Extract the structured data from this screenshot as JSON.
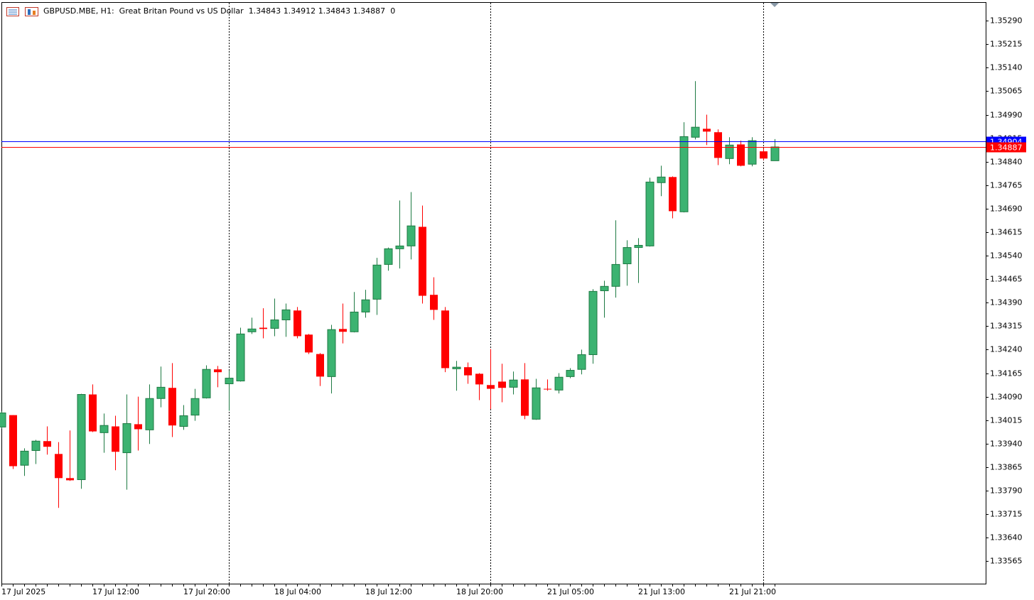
{
  "chart_data": {
    "type": "candlestick",
    "title": "GBPUSD.MBE, H1:",
    "subtitle": "Great Britan Pound vs US Dollar",
    "last_volume": 0,
    "categories": [
      "17 Jul 2025",
      null,
      null,
      null,
      null,
      null,
      null,
      null,
      "17 Jul 12:00",
      null,
      null,
      null,
      null,
      null,
      null,
      null,
      "17 Jul 20:00",
      null,
      null,
      null,
      null,
      null,
      null,
      null,
      "18 Jul 04:00",
      null,
      null,
      null,
      null,
      null,
      null,
      null,
      "18 Jul 12:00",
      null,
      null,
      null,
      null,
      null,
      null,
      null,
      "18 Jul 20:00",
      null,
      null,
      null,
      null,
      null,
      null,
      null,
      "21 Jul 05:00",
      null,
      null,
      null,
      null,
      null,
      null,
      null,
      "21 Jul 13:00",
      null,
      null,
      null,
      null,
      null,
      null,
      null,
      "21 Jul 21:00",
      null,
      null,
      null,
      null
    ],
    "open": [
      1.33993,
      1.34031,
      1.33871,
      1.33918,
      1.33948,
      1.33907,
      1.3383,
      1.33825,
      1.34097,
      1.33975,
      1.33995,
      1.33911,
      1.34002,
      1.33984,
      1.34084,
      1.34118,
      1.33995,
      1.34031,
      1.34086,
      1.34177,
      1.34131,
      1.3414,
      1.34297,
      1.3431,
      1.34308,
      1.34335,
      1.34365,
      1.34288,
      1.34226,
      1.34154,
      1.34306,
      1.34297,
      1.3436,
      1.34401,
      1.34512,
      1.34562,
      1.34571,
      1.34632,
      1.34415,
      1.34365,
      1.34179,
      1.34184,
      1.34163,
      1.34127,
      1.34138,
      1.3412,
      1.34145,
      1.34018,
      1.34115,
      1.34111,
      1.34154,
      1.34177,
      1.34224,
      1.34428,
      1.34442,
      1.34514,
      1.34566,
      1.34571,
      1.34773,
      1.34791,
      1.3468,
      1.34918,
      1.34945,
      1.34934,
      1.3485,
      1.34895,
      1.34832,
      1.34873,
      1.34843
    ],
    "high": [
      1.34043,
      1.34031,
      1.33925,
      1.33952,
      1.33995,
      1.33945,
      1.33982,
      1.34099,
      1.34129,
      1.34036,
      1.34029,
      1.34097,
      1.3409,
      1.34129,
      1.34186,
      1.34197,
      1.34063,
      1.34115,
      1.3419,
      1.34188,
      1.34174,
      1.3431,
      1.34342,
      1.34372,
      1.34403,
      1.34387,
      1.34376,
      1.3429,
      1.34229,
      1.34319,
      1.34387,
      1.34424,
      1.34431,
      1.34533,
      1.34566,
      1.34716,
      1.34743,
      1.347,
      1.34471,
      1.34376,
      1.34204,
      1.34199,
      1.34165,
      1.34242,
      1.34195,
      1.3417,
      1.34197,
      1.34147,
      1.34145,
      1.34165,
      1.34181,
      1.3424,
      1.34433,
      1.3446,
      1.34653,
      1.34589,
      1.34596,
      1.34789,
      1.34827,
      1.34793,
      1.34966,
      1.35097,
      1.3499,
      1.34943,
      1.34918,
      1.34907,
      1.34918,
      1.34882,
      1.34912
    ],
    "low": [
      1.33988,
      1.33859,
      1.33837,
      1.33875,
      1.33905,
      1.33735,
      1.33821,
      1.33796,
      1.33977,
      1.33911,
      1.33855,
      1.33793,
      1.33918,
      1.33939,
      1.34056,
      1.33961,
      1.33984,
      1.34013,
      1.34084,
      1.3412,
      1.34045,
      1.34138,
      1.3429,
      1.34276,
      1.34283,
      1.34281,
      1.34276,
      1.34226,
      1.34124,
      1.341,
      1.3426,
      1.34295,
      1.34342,
      1.34351,
      1.34492,
      1.34499,
      1.34528,
      1.34387,
      1.34335,
      1.34168,
      1.34109,
      1.34131,
      1.34079,
      1.3405,
      1.34072,
      1.34097,
      1.34018,
      1.34016,
      1.34109,
      1.341,
      1.34149,
      1.34161,
      1.34195,
      1.34342,
      1.34406,
      1.34444,
      1.34453,
      1.34569,
      1.3473,
      1.34659,
      1.34678,
      1.34911,
      1.34893,
      1.34829,
      1.34832,
      1.34825,
      1.34825,
      1.34845,
      1.34843
    ],
    "close": [
      1.34038,
      1.33868,
      1.33916,
      1.33948,
      1.3393,
      1.3383,
      1.33823,
      1.34097,
      1.33979,
      1.33998,
      1.33914,
      1.34004,
      1.33986,
      1.34084,
      1.3412,
      1.33998,
      1.34029,
      1.34084,
      1.34177,
      1.34168,
      1.34149,
      1.3429,
      1.34306,
      1.34306,
      1.34335,
      1.34367,
      1.34283,
      1.34231,
      1.34154,
      1.34304,
      1.34297,
      1.3436,
      1.34399,
      1.3451,
      1.34562,
      1.34571,
      1.34635,
      1.34412,
      1.34367,
      1.34181,
      1.34184,
      1.34158,
      1.34129,
      1.34115,
      1.34118,
      1.34143,
      1.34029,
      1.34118,
      1.34113,
      1.34152,
      1.34174,
      1.34224,
      1.34426,
      1.34442,
      1.34512,
      1.34566,
      1.34573,
      1.34775,
      1.34791,
      1.34682,
      1.3492,
      1.3495,
      1.34936,
      1.34852,
      1.34893,
      1.34827,
      1.34907,
      1.3485,
      1.34887
    ],
    "up_color": "#3cb371",
    "down_color": "#ff0000",
    "separators": [
      20,
      43,
      67
    ],
    "price_lines": [
      {
        "value": 1.34904,
        "label": "1.34904",
        "color": "#0000ff"
      },
      {
        "value": 1.34887,
        "label": "1.34887",
        "color": "#ff0000"
      }
    ],
    "ylim": [
      1.33493,
      1.35347
    ],
    "yticks": [
      {
        "value": 1.3529,
        "label": "1.35290"
      },
      {
        "value": 1.35215,
        "label": "1.35215"
      },
      {
        "value": 1.3514,
        "label": "1.35140"
      },
      {
        "value": 1.35065,
        "label": "1.35065"
      },
      {
        "value": 1.3499,
        "label": "1.34990"
      },
      {
        "value": 1.34915,
        "label": "1.34915"
      },
      {
        "value": 1.3484,
        "label": "1.34840"
      },
      {
        "value": 1.34765,
        "label": "1.34765"
      },
      {
        "value": 1.3469,
        "label": "1.34690"
      },
      {
        "value": 1.34615,
        "label": "1.34615"
      },
      {
        "value": 1.3454,
        "label": "1.34540"
      },
      {
        "value": 1.34465,
        "label": "1.34465"
      },
      {
        "value": 1.3439,
        "label": "1.34390"
      },
      {
        "value": 1.34315,
        "label": "1.34315"
      },
      {
        "value": 1.3424,
        "label": "1.34240"
      },
      {
        "value": 1.34165,
        "label": "1.34165"
      },
      {
        "value": 1.3409,
        "label": "1.34090"
      },
      {
        "value": 1.34015,
        "label": "1.34015"
      },
      {
        "value": 1.3394,
        "label": "1.33940"
      },
      {
        "value": 1.33865,
        "label": "1.33865"
      },
      {
        "value": 1.3379,
        "label": "1.33790"
      },
      {
        "value": 1.33715,
        "label": "1.33715"
      },
      {
        "value": 1.3364,
        "label": "1.33640"
      },
      {
        "value": 1.33565,
        "label": "1.33565"
      }
    ]
  }
}
